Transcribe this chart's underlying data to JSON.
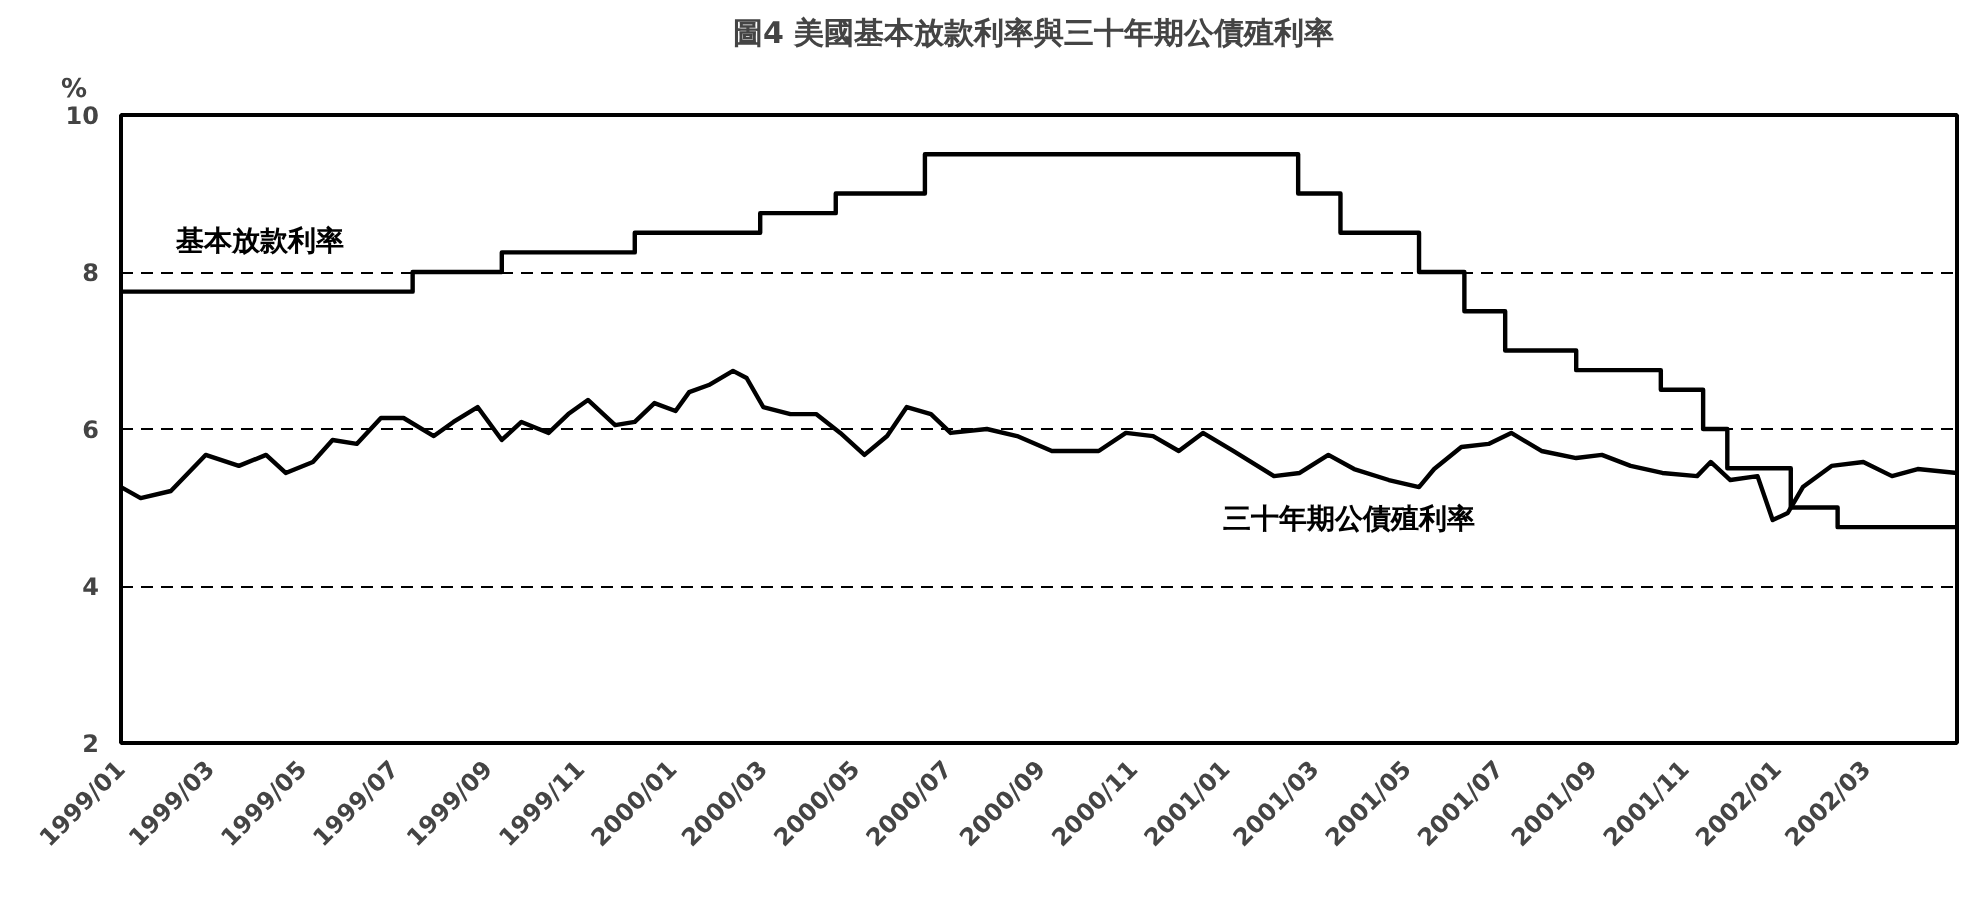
{
  "chart_data": {
    "type": "line",
    "title": "圖4  美國基本放款利率與三十年期公債殖利率",
    "ylabel": "%",
    "xlim": [
      "1999-01-01",
      "2002-04-30"
    ],
    "ylim": [
      2,
      10
    ],
    "yticks": [
      2,
      4,
      6,
      8,
      10
    ],
    "xticks": [
      {
        "value": "1999-01",
        "label": "1999/01"
      },
      {
        "value": "1999-03",
        "label": "1999/03"
      },
      {
        "value": "1999-05",
        "label": "1999/05"
      },
      {
        "value": "1999-07",
        "label": "1999/07"
      },
      {
        "value": "1999-09",
        "label": "1999/09"
      },
      {
        "value": "1999-11",
        "label": "1999/11"
      },
      {
        "value": "2000-01",
        "label": "2000/01"
      },
      {
        "value": "2000-03",
        "label": "2000/03"
      },
      {
        "value": "2000-05",
        "label": "2000/05"
      },
      {
        "value": "2000-07",
        "label": "2000/07"
      },
      {
        "value": "2000-09",
        "label": "2000/09"
      },
      {
        "value": "2000-11",
        "label": "2000/11"
      },
      {
        "value": "2001-01",
        "label": "2001/01"
      },
      {
        "value": "2001-03",
        "label": "2001/03"
      },
      {
        "value": "2001-05",
        "label": "2001/05"
      },
      {
        "value": "2001-07",
        "label": "2001/07"
      },
      {
        "value": "2001-09",
        "label": "2001/09"
      },
      {
        "value": "2001-11",
        "label": "2001/11"
      },
      {
        "value": "2002-01",
        "label": "2002/01"
      },
      {
        "value": "2002-03",
        "label": "2002/03"
      }
    ],
    "grid": "y",
    "legend": false,
    "marker": "none",
    "line_style": "solid",
    "series": [
      {
        "name": "基本放款利率",
        "type": "step",
        "color": "#000000",
        "x": [
          "1999-01-01",
          "1999-07-13",
          "1999-09-10",
          "1999-12-07",
          "2000-02-28",
          "2000-04-18",
          "2000-06-16",
          "2001-02-18",
          "2001-03-18",
          "2001-05-09",
          "2001-06-08",
          "2001-07-05",
          "2001-08-21",
          "2001-10-16",
          "2001-11-13",
          "2001-11-29",
          "2002-01-10",
          "2002-02-10",
          "2002-04-30"
        ],
        "values": [
          7.75,
          8.0,
          8.25,
          8.5,
          8.75,
          9.0,
          9.5,
          9.0,
          8.5,
          8.0,
          7.5,
          7.0,
          6.75,
          6.5,
          6.0,
          5.5,
          5.0,
          4.75,
          4.75
        ]
      },
      {
        "name": "三十年期公債殖利率",
        "color": "#000000",
        "x": [
          "1999-01-01",
          "1999-01-14",
          "1999-02-03",
          "1999-02-26",
          "1999-03-20",
          "1999-04-07",
          "1999-04-20",
          "1999-05-08",
          "1999-05-21",
          "1999-06-06",
          "1999-06-22",
          "1999-07-07",
          "1999-07-27",
          "1999-08-09",
          "1999-08-25",
          "1999-09-10",
          "1999-09-23",
          "1999-10-11",
          "1999-10-24",
          "1999-11-06",
          "1999-11-24",
          "1999-12-07",
          "1999-12-20",
          "2000-01-03",
          "2000-01-12",
          "2000-01-25",
          "2000-02-10",
          "2000-02-19",
          "2000-03-01",
          "2000-03-19",
          "2000-04-05",
          "2000-04-21",
          "2000-05-07",
          "2000-05-22",
          "2000-06-04",
          "2000-06-20",
          "2000-07-03",
          "2000-07-27",
          "2000-08-16",
          "2000-09-08",
          "2000-10-09",
          "2000-10-27",
          "2000-11-14",
          "2000-12-01",
          "2000-12-17",
          "2001-01-06",
          "2001-02-02",
          "2001-02-19",
          "2001-03-10",
          "2001-03-27",
          "2001-04-19",
          "2001-05-09",
          "2001-05-19",
          "2001-06-06",
          "2001-06-24",
          "2001-07-09",
          "2001-07-29",
          "2001-08-21",
          "2001-09-07",
          "2001-09-26",
          "2001-10-17",
          "2001-11-09",
          "2001-11-18",
          "2001-12-01",
          "2001-12-19",
          "2001-12-29",
          "2002-01-08",
          "2002-01-18",
          "2002-02-06",
          "2002-02-27",
          "2002-03-18",
          "2002-04-04",
          "2002-04-30"
        ],
        "values": [
          5.26,
          5.12,
          5.21,
          5.67,
          5.53,
          5.67,
          5.44,
          5.58,
          5.86,
          5.81,
          6.14,
          6.14,
          5.91,
          6.09,
          6.28,
          5.86,
          6.09,
          5.95,
          6.19,
          6.37,
          6.05,
          6.09,
          6.33,
          6.23,
          6.47,
          6.56,
          6.74,
          6.65,
          6.28,
          6.19,
          6.19,
          5.95,
          5.67,
          5.91,
          6.28,
          6.19,
          5.95,
          6.0,
          5.91,
          5.72,
          5.72,
          5.95,
          5.91,
          5.72,
          5.95,
          5.72,
          5.4,
          5.44,
          5.67,
          5.49,
          5.35,
          5.26,
          5.49,
          5.77,
          5.81,
          5.95,
          5.72,
          5.63,
          5.67,
          5.53,
          5.44,
          5.4,
          5.58,
          5.35,
          5.4,
          4.84,
          4.93,
          5.26,
          5.53,
          5.58,
          5.4,
          5.49,
          5.44
        ]
      }
    ]
  }
}
